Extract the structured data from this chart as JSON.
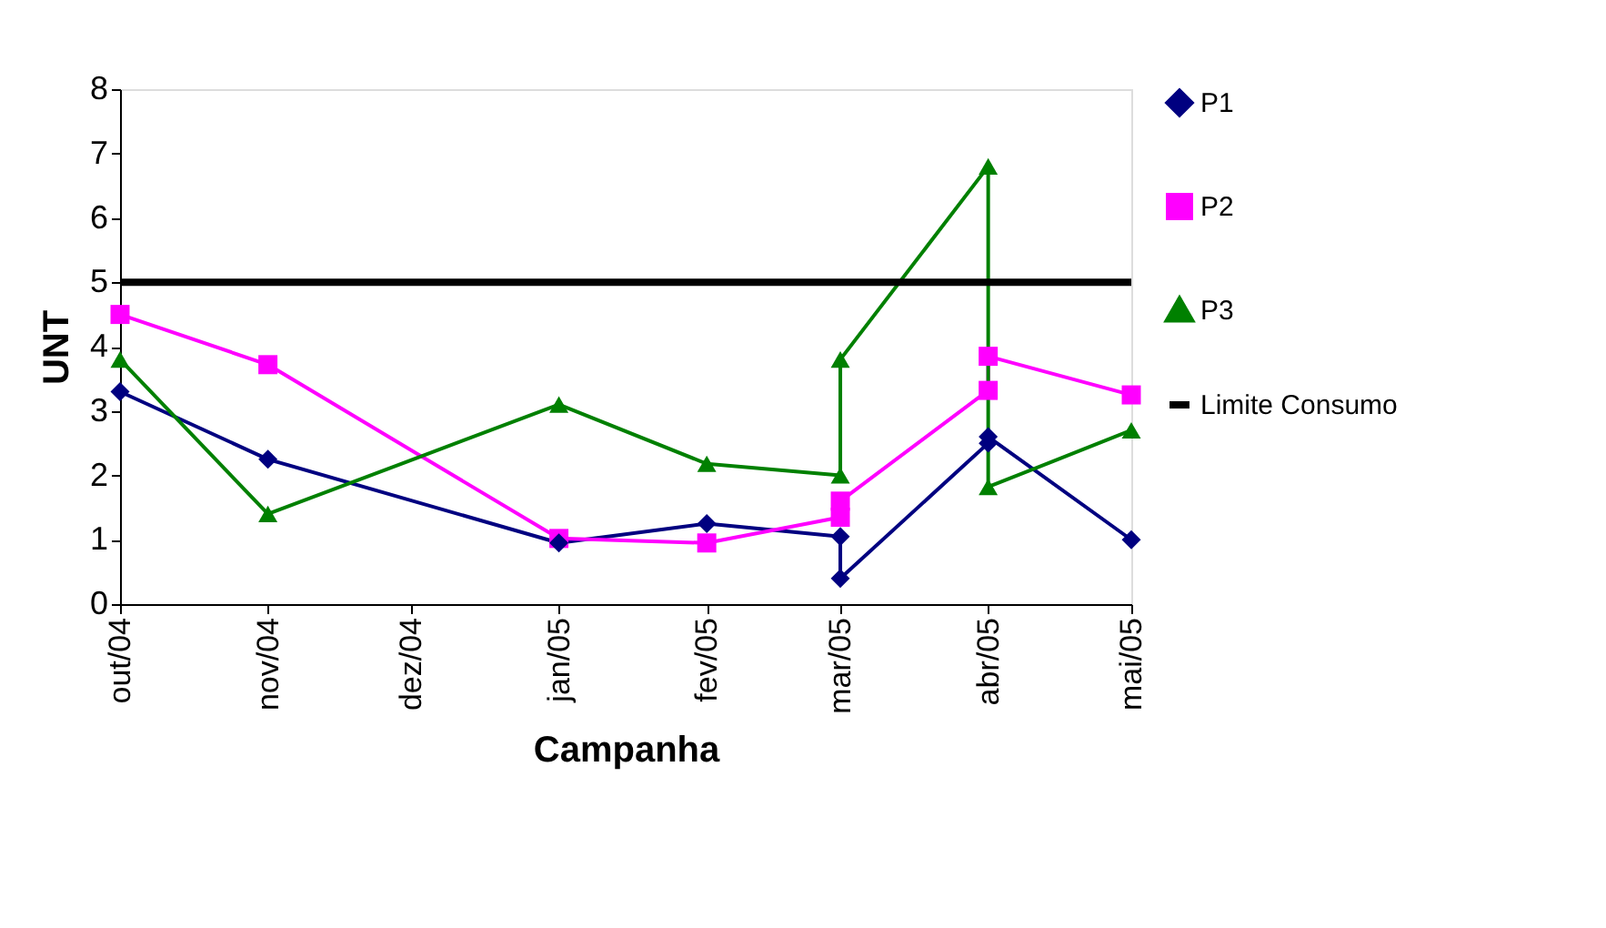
{
  "chart_data": {
    "type": "line",
    "xlabel": "Campanha",
    "ylabel": "UNT",
    "series": [
      {
        "name": "P1",
        "color": "#000080",
        "marker": "diamond",
        "x": [
          "2004-10-01",
          "2004-11-01",
          "2005-01-01",
          "2005-02-01",
          "2005-03-01",
          "2005-03-01",
          "2005-04-01",
          "2005-04-01",
          "2005-05-01"
        ],
        "values": [
          3.3,
          2.25,
          0.95,
          1.25,
          1.05,
          0.4,
          2.5,
          2.6,
          1.0
        ]
      },
      {
        "name": "P2",
        "color": "#ff00ff",
        "marker": "square",
        "x": [
          "2004-10-01",
          "2004-11-01",
          "2005-01-01",
          "2005-02-01",
          "2005-03-01",
          "2005-03-01",
          "2005-04-01",
          "2005-04-01",
          "2005-05-01"
        ],
        "values": [
          4.5,
          3.72,
          1.02,
          0.95,
          1.35,
          1.6,
          3.32,
          3.85,
          3.25
        ]
      },
      {
        "name": "P3",
        "color": "#008000",
        "marker": "triangle",
        "x": [
          "2004-10-01",
          "2004-11-01",
          "2005-01-01",
          "2005-02-01",
          "2005-03-01",
          "2005-03-01",
          "2005-04-01",
          "2005-04-01",
          "2005-05-01"
        ],
        "values": [
          3.8,
          1.4,
          3.1,
          2.18,
          2.0,
          3.8,
          6.8,
          1.82,
          2.7
        ]
      }
    ],
    "ref_lines": [
      {
        "axis": "y",
        "value": 5,
        "label": "Limite Consumo",
        "color": "#000000",
        "line_style": "solid"
      }
    ],
    "xlim": [
      "2004-10-01",
      "2005-05-01"
    ],
    "xticks": [
      {
        "value": "2004-10-01",
        "label": "out/04"
      },
      {
        "value": "2004-11-01",
        "label": "nov/04"
      },
      {
        "value": "2004-12-01",
        "label": "dez/04"
      },
      {
        "value": "2005-01-01",
        "label": "jan/05"
      },
      {
        "value": "2005-02-01",
        "label": "fev/05"
      },
      {
        "value": "2005-03-01",
        "label": "mar/05"
      },
      {
        "value": "2005-04-01",
        "label": "abr/05"
      },
      {
        "value": "2005-05-01",
        "label": "mai/05"
      }
    ],
    "ylim": [
      0,
      8
    ],
    "yticks": [
      0,
      1,
      2,
      3,
      4,
      5,
      6,
      7,
      8
    ],
    "grid": false,
    "legend": "right",
    "line_style": "solid"
  }
}
